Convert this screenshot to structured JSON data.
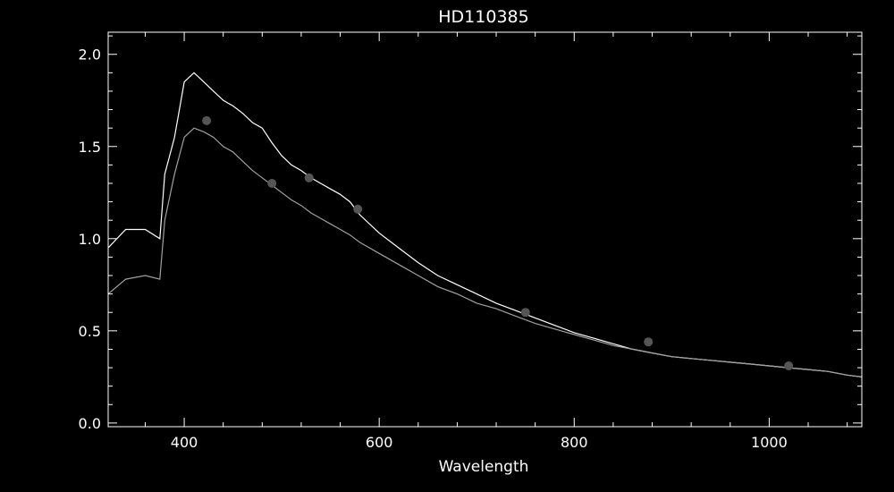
{
  "chart_data": {
    "type": "line",
    "title": "HD110385",
    "xlabel": "Wavelength",
    "ylabel": "",
    "xlim": [
      322,
      1095
    ],
    "ylim": [
      -0.02,
      2.12
    ],
    "x_ticks": [
      400,
      600,
      800,
      1000
    ],
    "y_ticks": [
      0.0,
      0.5,
      1.0,
      1.5,
      2.0
    ],
    "x_tick_labels": [
      "400",
      "600",
      "800",
      "1000"
    ],
    "y_tick_labels": [
      "0.0",
      "0.5",
      "1.0",
      "1.5",
      "2.0"
    ],
    "grid": false,
    "colors": {
      "background": "#000000",
      "axes": "#ffffff",
      "series_1": "#ffffff",
      "series_2": "#a0a0a0",
      "points": "#555555"
    },
    "series": [
      {
        "color": "#ffffff",
        "x": [
          322,
          340,
          360,
          375,
          380,
          390,
          400,
          410,
          420,
          430,
          440,
          450,
          460,
          470,
          480,
          490,
          500,
          510,
          520,
          530,
          540,
          550,
          560,
          570,
          580,
          600,
          620,
          640,
          660,
          680,
          700,
          720,
          740,
          760,
          780,
          800,
          820,
          840,
          860,
          880,
          900,
          920,
          940,
          960,
          980,
          1000,
          1020,
          1040,
          1060,
          1080,
          1095
        ],
        "y": [
          0.95,
          1.05,
          1.05,
          1.0,
          1.35,
          1.55,
          1.85,
          1.9,
          1.85,
          1.8,
          1.75,
          1.72,
          1.68,
          1.63,
          1.6,
          1.52,
          1.45,
          1.4,
          1.37,
          1.33,
          1.3,
          1.27,
          1.24,
          1.2,
          1.13,
          1.03,
          0.95,
          0.87,
          0.8,
          0.75,
          0.7,
          0.65,
          0.61,
          0.57,
          0.53,
          0.49,
          0.46,
          0.43,
          0.4,
          0.38,
          0.36,
          0.35,
          0.34,
          0.33,
          0.32,
          0.31,
          0.3,
          0.29,
          0.28,
          0.26,
          0.25
        ]
      },
      {
        "color": "#a0a0a0",
        "x": [
          322,
          340,
          360,
          375,
          380,
          390,
          400,
          410,
          420,
          430,
          440,
          450,
          460,
          470,
          480,
          490,
          500,
          510,
          520,
          530,
          540,
          550,
          560,
          570,
          580,
          600,
          620,
          640,
          660,
          680,
          700,
          720,
          740,
          760,
          780,
          800,
          820,
          840,
          860,
          880,
          900,
          920,
          940,
          960,
          980,
          1000,
          1020,
          1040,
          1060,
          1080,
          1095
        ],
        "y": [
          0.7,
          0.78,
          0.8,
          0.78,
          1.1,
          1.35,
          1.55,
          1.6,
          1.58,
          1.55,
          1.5,
          1.47,
          1.42,
          1.37,
          1.33,
          1.29,
          1.25,
          1.21,
          1.18,
          1.14,
          1.11,
          1.08,
          1.05,
          1.02,
          0.98,
          0.92,
          0.86,
          0.8,
          0.74,
          0.7,
          0.65,
          0.62,
          0.58,
          0.54,
          0.51,
          0.48,
          0.45,
          0.42,
          0.4,
          0.38,
          0.36,
          0.35,
          0.34,
          0.33,
          0.32,
          0.31,
          0.3,
          0.29,
          0.28,
          0.26,
          0.25
        ]
      },
      {
        "type": "scatter",
        "color": "#555555",
        "x": [
          423,
          490,
          528,
          578,
          750,
          876,
          1020
        ],
        "y": [
          1.64,
          1.3,
          1.33,
          1.16,
          0.6,
          0.44,
          0.31
        ]
      }
    ]
  }
}
